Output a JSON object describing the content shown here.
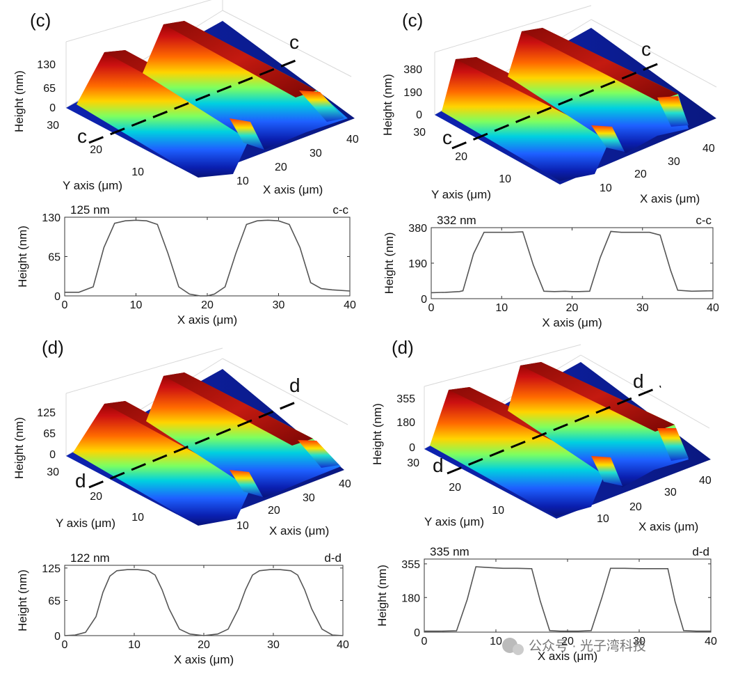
{
  "panel_labels": [
    "(c)",
    "(c)",
    "(d)",
    "(d)"
  ],
  "surface_plots": [
    {
      "panel": "(c)",
      "section_mark": "c",
      "zlabel": "Height (nm)",
      "xlabel": "X axis (μm)",
      "ylabel": "Y axis (μm)",
      "z_ticks": [
        "0",
        "65",
        "130"
      ],
      "x_ticks": [
        "10",
        "20",
        "30",
        "40"
      ],
      "y_ticks": [
        "10",
        "20",
        "30"
      ]
    },
    {
      "panel": "(c)",
      "section_mark": "c",
      "zlabel": "Height (nm)",
      "xlabel": "X axis (μm)",
      "ylabel": "Y axis (μm)",
      "z_ticks": [
        "0",
        "190",
        "380"
      ],
      "x_ticks": [
        "10",
        "20",
        "30",
        "40"
      ],
      "y_ticks": [
        "10",
        "20",
        "30"
      ]
    },
    {
      "panel": "(d)",
      "section_mark": "d",
      "zlabel": "Height (nm)",
      "xlabel": "X axis (μm)",
      "ylabel": "Y axis (μm)",
      "z_ticks": [
        "0",
        "65",
        "125"
      ],
      "x_ticks": [
        "10",
        "20",
        "30",
        "40"
      ],
      "y_ticks": [
        "10",
        "20",
        "30"
      ]
    },
    {
      "panel": "(d)",
      "section_mark": "d",
      "zlabel": "Height (nm)",
      "xlabel": "X axis (μm)",
      "ylabel": "Y axis (μm)",
      "z_ticks": [
        "0",
        "180",
        "355"
      ],
      "x_ticks": [
        "10",
        "20",
        "30",
        "40"
      ],
      "y_ticks": [
        "10",
        "20",
        "30"
      ]
    }
  ],
  "chart_data": [
    {
      "type": "line",
      "annotation": "125 nm",
      "section": "c-c",
      "xlabel": "X axis (μm)",
      "ylabel": "Height (nm)",
      "xlim": [
        0,
        40
      ],
      "ylim": [
        0,
        130
      ],
      "xticks": [
        0,
        10,
        20,
        30,
        40
      ],
      "yticks": [
        0,
        65,
        130
      ],
      "x": [
        0,
        2,
        4,
        5.5,
        7,
        8.5,
        10,
        11.5,
        13,
        14.5,
        16,
        17.5,
        19,
        20,
        21,
        22.5,
        24,
        25.5,
        27,
        28.5,
        30,
        31.5,
        33,
        34.5,
        36,
        37.5,
        40
      ],
      "y": [
        6,
        6,
        15,
        80,
        120,
        124,
        125,
        124,
        118,
        70,
        15,
        3,
        0,
        0,
        3,
        15,
        70,
        118,
        124,
        125,
        124,
        118,
        80,
        22,
        12,
        10,
        8
      ]
    },
    {
      "type": "line",
      "annotation": "332 nm",
      "section": "c-c",
      "xlabel": "X axis (μm)",
      "ylabel": "Height (nm)",
      "xlim": [
        0,
        40
      ],
      "ylim": [
        0,
        380
      ],
      "xticks": [
        0,
        10,
        20,
        30,
        40
      ],
      "yticks": [
        0,
        190,
        380
      ],
      "x": [
        0,
        2,
        4,
        4.5,
        6,
        7.5,
        9.5,
        11.5,
        13,
        14.5,
        16,
        17.5,
        19,
        20,
        21,
        22.5,
        24,
        25.5,
        27,
        29,
        31,
        32.5,
        34,
        35,
        37,
        40
      ],
      "y": [
        32,
        34,
        38,
        42,
        240,
        355,
        355,
        355,
        358,
        180,
        40,
        38,
        40,
        38,
        38,
        40,
        220,
        360,
        355,
        355,
        355,
        340,
        150,
        45,
        40,
        42
      ]
    },
    {
      "type": "line",
      "annotation": "122 nm",
      "section": "d-d",
      "xlabel": "X axis (μm)",
      "ylabel": "Height (nm)",
      "xlim": [
        0,
        40
      ],
      "ylim": [
        0,
        130
      ],
      "xticks": [
        0,
        10,
        20,
        30,
        40
      ],
      "yticks": [
        0,
        65,
        125
      ],
      "x": [
        0,
        1.5,
        3,
        4.5,
        5.5,
        6.5,
        7.5,
        9,
        10.5,
        12,
        13,
        14,
        15,
        16.5,
        18,
        20,
        22,
        23.5,
        25,
        26,
        27,
        28,
        29.5,
        31,
        32.5,
        33.5,
        34.5,
        35.5,
        37,
        38.5,
        40
      ],
      "y": [
        0,
        1,
        6,
        35,
        80,
        110,
        120,
        122,
        122,
        120,
        112,
        85,
        50,
        12,
        3,
        0,
        3,
        12,
        50,
        85,
        112,
        120,
        122,
        122,
        120,
        112,
        85,
        50,
        12,
        1,
        0
      ]
    },
    {
      "type": "line",
      "annotation": "335 nm",
      "section": "d-d",
      "xlabel": "X axis (μm)",
      "ylabel": "Height (nm)",
      "xlim": [
        0,
        40
      ],
      "ylim": [
        0,
        380
      ],
      "xticks": [
        0,
        10,
        20,
        30,
        40
      ],
      "yticks": [
        0,
        180,
        355
      ],
      "x": [
        0,
        2,
        4.5,
        6,
        7.2,
        9,
        11,
        13,
        15,
        16.2,
        17.5,
        19,
        20,
        21.5,
        23.3,
        24.8,
        26,
        28,
        30,
        32,
        34,
        35,
        36.2,
        38,
        40
      ],
      "y": [
        5,
        5,
        7,
        170,
        340,
        336,
        332,
        332,
        330,
        160,
        8,
        5,
        5,
        5,
        8,
        180,
        332,
        332,
        330,
        330,
        330,
        160,
        8,
        5,
        5
      ]
    }
  ],
  "watermark": "公众号 · 光子湾科技"
}
